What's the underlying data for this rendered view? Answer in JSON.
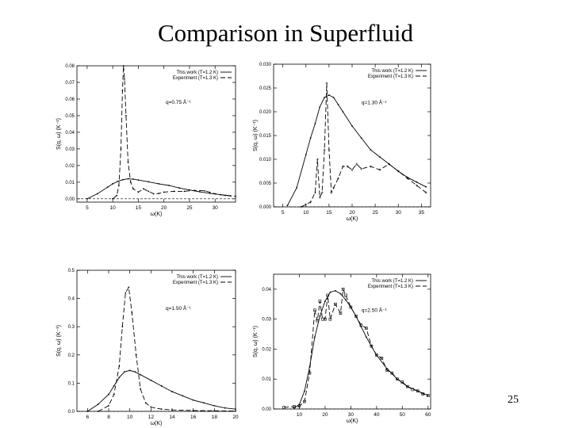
{
  "title": "Comparison in Superfluid",
  "page_number": "25",
  "chart_data": [
    {
      "type": "line",
      "annotation": "q=0.75 Å⁻¹",
      "xlabel": "ω(K)",
      "ylabel": "S(q, ω) (K⁻¹)",
      "xlim": [
        3,
        34
      ],
      "ylim": [
        -0.002,
        0.08
      ],
      "xticks": [
        5,
        10,
        15,
        20,
        25,
        30
      ],
      "yticks": [
        0,
        0.01,
        0.02,
        0.03,
        0.04,
        0.05,
        0.06,
        0.07,
        0.08
      ],
      "ytick_labels": [
        "0.00",
        "0.01",
        "0.02",
        "0.03",
        "0.04",
        "0.05",
        "0.06",
        "0.07",
        "0.08"
      ],
      "legend": "top-right",
      "grid": false,
      "series": [
        {
          "name": "This work (T=1.2 K)",
          "marker": "dot",
          "x": [
            5,
            7,
            9,
            10,
            11,
            12,
            13,
            14,
            15,
            17,
            19,
            21,
            23,
            25,
            27,
            29,
            31,
            33
          ],
          "y": [
            0.0,
            0.003,
            0.007,
            0.009,
            0.0105,
            0.0115,
            0.012,
            0.0118,
            0.0113,
            0.0102,
            0.009,
            0.008,
            0.0065,
            0.0053,
            0.0042,
            0.0033,
            0.0025,
            0.0018
          ]
        },
        {
          "name": "Experiment (T=1.3 K)",
          "marker": "dash",
          "x": [
            10,
            10.8,
            11.2,
            11.6,
            11.9,
            12.1,
            12.3,
            12.6,
            13,
            13.5,
            14,
            15,
            16,
            17,
            18,
            19,
            20,
            22,
            24,
            26,
            28,
            30,
            32,
            34
          ],
          "y": [
            0.0,
            0.002,
            0.008,
            0.03,
            0.065,
            0.08,
            0.072,
            0.05,
            0.022,
            0.01,
            0.006,
            0.004,
            0.006,
            0.0045,
            0.003,
            0.0032,
            0.004,
            0.0045,
            0.0045,
            0.005,
            0.0048,
            0.003,
            0.002,
            0.0015
          ]
        }
      ]
    },
    {
      "type": "line",
      "annotation": "q=1.30 Å⁻¹",
      "xlabel": "ω(K)",
      "ylabel": "S(q, ω) (K⁻¹)",
      "xlim": [
        3,
        37
      ],
      "ylim": [
        0,
        0.03
      ],
      "xticks": [
        5,
        10,
        15,
        20,
        25,
        30,
        35
      ],
      "yticks": [
        0,
        0.005,
        0.01,
        0.015,
        0.02,
        0.025,
        0.03
      ],
      "ytick_labels": [
        "0.000",
        "0.005",
        "0.010",
        "0.015",
        "0.020",
        "0.025",
        "0.030"
      ],
      "legend": "top-right",
      "grid": false,
      "series": [
        {
          "name": "This work (T=1.2 K)",
          "marker": "dot",
          "x": [
            6,
            8,
            10,
            11,
            12,
            13,
            14,
            15,
            16,
            17,
            18,
            20,
            22,
            24,
            26,
            28,
            30,
            32,
            34,
            36
          ],
          "y": [
            0.0003,
            0.004,
            0.011,
            0.0145,
            0.0175,
            0.021,
            0.023,
            0.0235,
            0.023,
            0.0215,
            0.02,
            0.017,
            0.0145,
            0.012,
            0.0105,
            0.009,
            0.0075,
            0.0062,
            0.0052,
            0.0042
          ]
        },
        {
          "name": "Experiment (T=1.3 K)",
          "marker": "cross",
          "x": [
            9,
            10,
            11,
            12,
            12.5,
            13,
            13.5,
            14,
            14.5,
            15,
            15.5,
            16,
            17,
            18,
            19,
            20,
            21,
            22,
            24,
            26,
            28,
            30,
            32,
            34,
            36
          ],
          "y": [
            0.0,
            0.0005,
            0.001,
            0.003,
            0.01,
            0.002,
            0.003,
            0.012,
            0.026,
            0.012,
            0.003,
            0.004,
            0.006,
            0.0085,
            0.0085,
            0.0078,
            0.009,
            0.008,
            0.0085,
            0.0078,
            0.009,
            0.0075,
            0.006,
            0.0045,
            0.003
          ]
        }
      ]
    },
    {
      "type": "line",
      "annotation": "q=1.50 Å⁻¹",
      "xlabel": "ω(K)",
      "ylabel": "S(q, ω) (K⁻¹)",
      "xlim": [
        5,
        20
      ],
      "ylim": [
        0,
        0.5
      ],
      "xticks": [
        6,
        8,
        10,
        12,
        14,
        16,
        18,
        20
      ],
      "yticks": [
        0,
        0.1,
        0.2,
        0.3,
        0.4,
        0.5
      ],
      "ytick_labels": [
        "0.0",
        "0.1",
        "0.2",
        "0.3",
        "0.4",
        "0.5"
      ],
      "legend": "top-right",
      "grid": false,
      "series": [
        {
          "name": "This work (T=1.2 K)",
          "marker": "dot",
          "x": [
            6,
            7,
            8,
            8.5,
            9,
            9.5,
            10,
            10.5,
            11,
            12,
            13,
            14,
            15,
            16,
            17,
            18,
            19,
            20
          ],
          "y": [
            0.0,
            0.025,
            0.06,
            0.09,
            0.12,
            0.14,
            0.145,
            0.14,
            0.13,
            0.11,
            0.09,
            0.07,
            0.055,
            0.04,
            0.03,
            0.02,
            0.012,
            0.008
          ]
        },
        {
          "name": "Experiment (T=1.3 K)",
          "marker": "dash",
          "x": [
            7,
            8,
            8.5,
            9,
            9.3,
            9.6,
            9.9,
            10.2,
            10.6,
            11,
            11.5,
            12,
            13,
            14,
            16,
            18,
            20
          ],
          "y": [
            0.0,
            0.02,
            0.06,
            0.16,
            0.3,
            0.42,
            0.44,
            0.35,
            0.2,
            0.08,
            0.03,
            0.015,
            0.008,
            0.005,
            0.003,
            0.002,
            0.001
          ]
        }
      ]
    },
    {
      "type": "line",
      "annotation": "q=2.50 Å⁻¹",
      "xlabel": "ω(K)",
      "ylabel": "S(q, ω) (K⁻¹)",
      "xlim": [
        0,
        61
      ],
      "ylim": [
        0,
        0.045
      ],
      "xticks": [
        10,
        20,
        30,
        40,
        50,
        60
      ],
      "yticks": [
        0,
        0.01,
        0.02,
        0.03,
        0.04
      ],
      "ytick_labels": [
        "0.00",
        "0.01",
        "0.02",
        "0.03",
        "0.04"
      ],
      "legend": "top-right",
      "grid": false,
      "series": [
        {
          "name": "This work (T=1.2 K)",
          "marker": "dot",
          "x": [
            8,
            10,
            12,
            14,
            16,
            18,
            20,
            22,
            24,
            26,
            28,
            30,
            32,
            34,
            36,
            38,
            40,
            44,
            48,
            52,
            56,
            60
          ],
          "y": [
            0.0003,
            0.0015,
            0.006,
            0.014,
            0.024,
            0.031,
            0.036,
            0.039,
            0.0395,
            0.0385,
            0.0365,
            0.034,
            0.031,
            0.0275,
            0.024,
            0.021,
            0.018,
            0.0135,
            0.01,
            0.0075,
            0.006,
            0.0045
          ]
        },
        {
          "name": "Experiment (T=1.3 K)",
          "marker": "square",
          "x": [
            4,
            8,
            10,
            12,
            14,
            16,
            17,
            18,
            19,
            20,
            21,
            22,
            24,
            26,
            27,
            28,
            30,
            32,
            34,
            36,
            38,
            40,
            42,
            44,
            46,
            48,
            50,
            52,
            54,
            56,
            58,
            60
          ],
          "y": [
            0.0005,
            0.0008,
            0.001,
            0.0025,
            0.012,
            0.033,
            0.0295,
            0.036,
            0.03,
            0.03,
            0.038,
            0.03,
            0.035,
            0.032,
            0.04,
            0.038,
            0.034,
            0.031,
            0.028,
            0.027,
            0.021,
            0.018,
            0.017,
            0.013,
            0.012,
            0.01,
            0.009,
            0.0075,
            0.0065,
            0.006,
            0.005,
            0.0045
          ]
        }
      ]
    }
  ]
}
